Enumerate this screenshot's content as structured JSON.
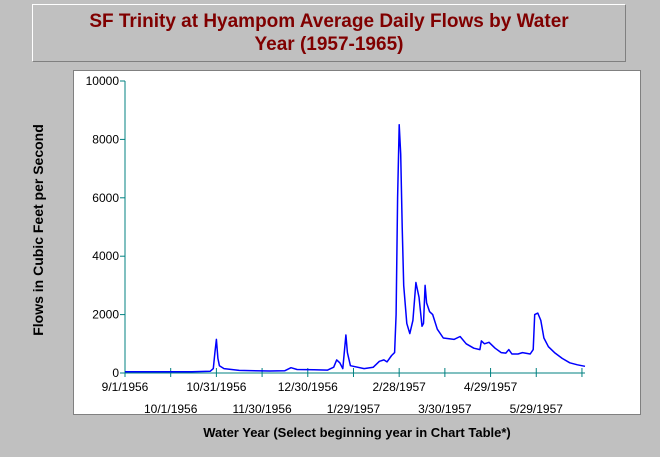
{
  "chart_data": {
    "type": "line",
    "title": "SF Trinity at Hyampom Average Daily Flows by Water Year (1957-1965)",
    "xlabel": "Water Year (Select beginning year in Chart Table*)",
    "ylabel": "Flows in Cubic Feet per Second",
    "ylim": [
      0,
      10000
    ],
    "xlim": [
      "1956-09-01",
      "1957-06-30"
    ],
    "yticks": [
      0,
      2000,
      4000,
      6000,
      8000,
      10000
    ],
    "xticks": [
      {
        "date": "1956-09-01",
        "label": "9/1/1956",
        "row": 1
      },
      {
        "date": "1956-10-01",
        "label": "10/1/1956",
        "row": 2
      },
      {
        "date": "1956-10-31",
        "label": "10/31/1956",
        "row": 1
      },
      {
        "date": "1956-11-30",
        "label": "11/30/1956",
        "row": 2
      },
      {
        "date": "1956-12-30",
        "label": "12/30/1956",
        "row": 1
      },
      {
        "date": "1957-01-29",
        "label": "1/29/1957",
        "row": 2
      },
      {
        "date": "1957-02-28",
        "label": "2/28/1957",
        "row": 1
      },
      {
        "date": "1957-03-30",
        "label": "3/30/1957",
        "row": 2
      },
      {
        "date": "1957-04-29",
        "label": "4/29/1957",
        "row": 1
      },
      {
        "date": "1957-05-29",
        "label": "5/29/1957",
        "row": 2
      },
      {
        "date": "1957-06-28",
        "label": "",
        "row": 1
      }
    ],
    "grid": false,
    "line_color": "#0000ff",
    "series": [
      {
        "name": "",
        "points": [
          [
            "1956-09-01",
            40
          ],
          [
            "1956-10-15",
            40
          ],
          [
            "1956-10-27",
            60
          ],
          [
            "1956-10-29",
            150
          ],
          [
            "1956-10-30",
            700
          ],
          [
            "1956-10-31",
            1150
          ],
          [
            "1956-11-01",
            500
          ],
          [
            "1956-11-02",
            250
          ],
          [
            "1956-11-05",
            150
          ],
          [
            "1956-11-15",
            90
          ],
          [
            "1956-12-05",
            70
          ],
          [
            "1956-12-15",
            80
          ],
          [
            "1956-12-19",
            180
          ],
          [
            "1956-12-23",
            120
          ],
          [
            "1957-01-03",
            110
          ],
          [
            "1957-01-12",
            100
          ],
          [
            "1957-01-16",
            200
          ],
          [
            "1957-01-18",
            450
          ],
          [
            "1957-01-20",
            350
          ],
          [
            "1957-01-22",
            150
          ],
          [
            "1957-01-24",
            1300
          ],
          [
            "1957-01-25",
            700
          ],
          [
            "1957-01-27",
            250
          ],
          [
            "1957-02-05",
            150
          ],
          [
            "1957-02-11",
            200
          ],
          [
            "1957-02-15",
            400
          ],
          [
            "1957-02-18",
            450
          ],
          [
            "1957-02-20",
            380
          ],
          [
            "1957-02-23",
            600
          ],
          [
            "1957-02-25",
            700
          ],
          [
            "1957-02-26",
            2000
          ],
          [
            "1957-02-27",
            6000
          ],
          [
            "1957-02-28",
            8500
          ],
          [
            "1957-03-01",
            7500
          ],
          [
            "1957-03-02",
            5000
          ],
          [
            "1957-03-03",
            3000
          ],
          [
            "1957-03-05",
            1700
          ],
          [
            "1957-03-07",
            1350
          ],
          [
            "1957-03-09",
            1800
          ],
          [
            "1957-03-11",
            3100
          ],
          [
            "1957-03-13",
            2600
          ],
          [
            "1957-03-15",
            1600
          ],
          [
            "1957-03-16",
            1700
          ],
          [
            "1957-03-17",
            3000
          ],
          [
            "1957-03-18",
            2400
          ],
          [
            "1957-03-20",
            2100
          ],
          [
            "1957-03-22",
            2000
          ],
          [
            "1957-03-25",
            1500
          ],
          [
            "1957-03-29",
            1200
          ],
          [
            "1957-04-05",
            1150
          ],
          [
            "1957-04-09",
            1250
          ],
          [
            "1957-04-13",
            1000
          ],
          [
            "1957-04-18",
            850
          ],
          [
            "1957-04-22",
            800
          ],
          [
            "1957-04-23",
            1100
          ],
          [
            "1957-04-25",
            1000
          ],
          [
            "1957-04-28",
            1050
          ],
          [
            "1957-05-02",
            850
          ],
          [
            "1957-05-06",
            700
          ],
          [
            "1957-05-09",
            680
          ],
          [
            "1957-05-11",
            800
          ],
          [
            "1957-05-13",
            650
          ],
          [
            "1957-05-17",
            650
          ],
          [
            "1957-05-20",
            700
          ],
          [
            "1957-05-25",
            650
          ],
          [
            "1957-05-27",
            800
          ],
          [
            "1957-05-28",
            2000
          ],
          [
            "1957-05-30",
            2050
          ],
          [
            "1957-06-01",
            1800
          ],
          [
            "1957-06-03",
            1200
          ],
          [
            "1957-06-06",
            900
          ],
          [
            "1957-06-10",
            700
          ],
          [
            "1957-06-15",
            500
          ],
          [
            "1957-06-20",
            350
          ],
          [
            "1957-06-25",
            280
          ],
          [
            "1957-06-30",
            230
          ]
        ]
      }
    ]
  }
}
